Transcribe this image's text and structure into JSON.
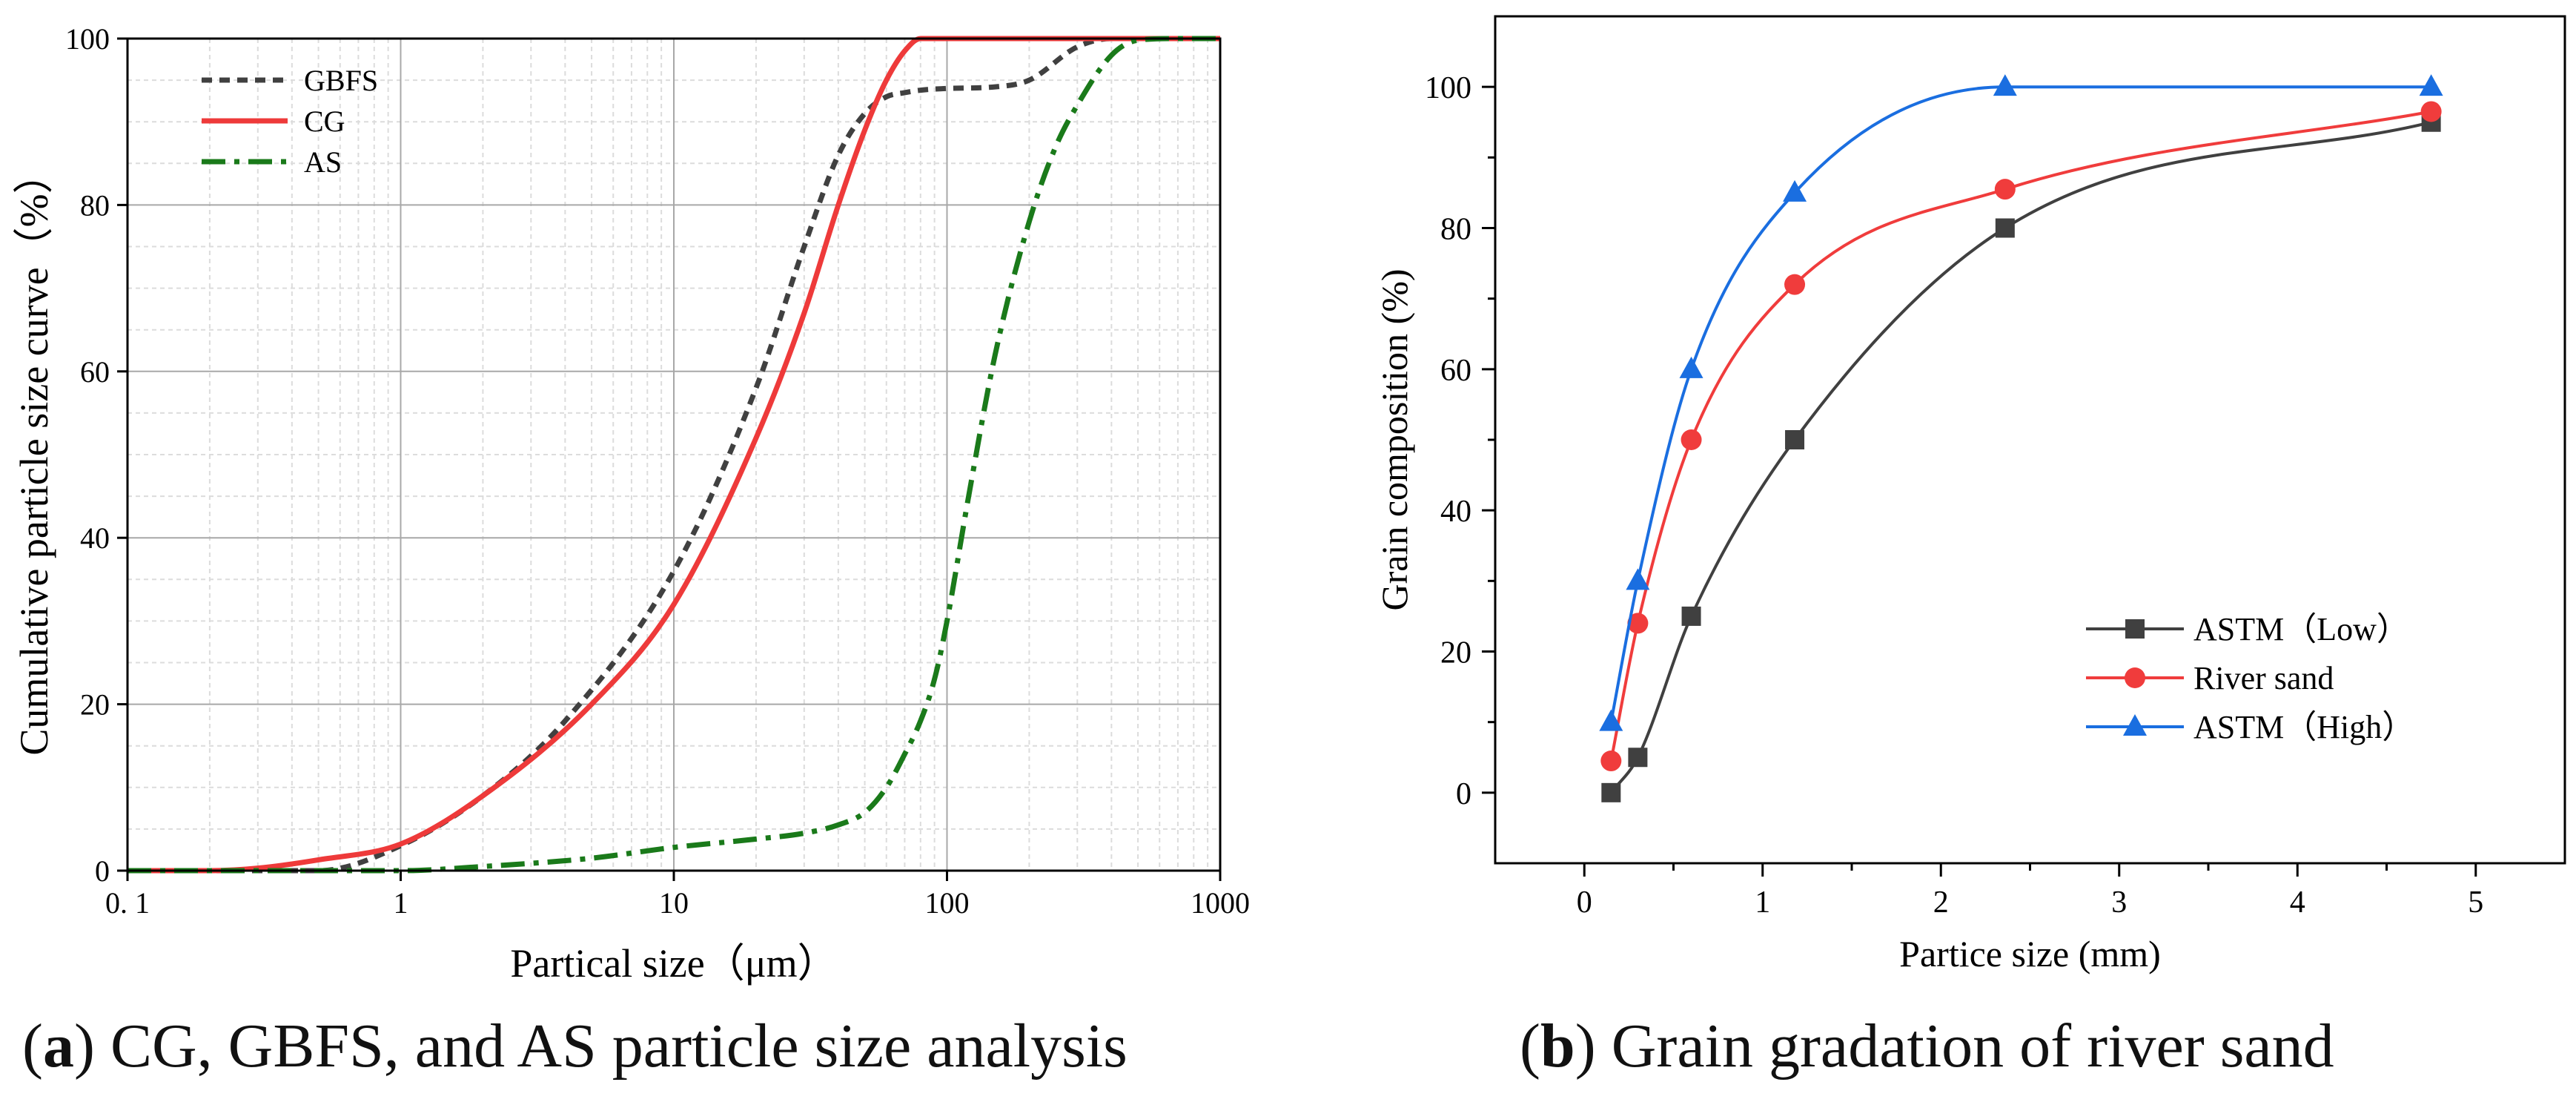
{
  "chart_data": [
    {
      "type": "line",
      "x_scale": "log",
      "xlabel": "Partical size（μm）",
      "ylabel": "Cumulative particle size curve（%）",
      "xlim": [
        0.1,
        1000
      ],
      "ylim": [
        0,
        100
      ],
      "grid": true,
      "legend_position": "top-left",
      "x_ticks": [
        {
          "value": 0.1,
          "label": "0. 1"
        },
        {
          "value": 1,
          "label": "1"
        },
        {
          "value": 10,
          "label": "10"
        },
        {
          "value": 100,
          "label": "100"
        },
        {
          "value": 1000,
          "label": "1000"
        }
      ],
      "y_ticks": [
        {
          "value": 0,
          "label": "0"
        },
        {
          "value": 20,
          "label": "20"
        },
        {
          "value": 40,
          "label": "40"
        },
        {
          "value": 60,
          "label": "60"
        },
        {
          "value": 80,
          "label": "80"
        },
        {
          "value": 100,
          "label": "100"
        }
      ],
      "series": [
        {
          "name": "GBFS",
          "color": "#404040",
          "dash": "dot",
          "x": [
            0.1,
            0.3,
            0.5,
            1,
            2,
            4,
            10,
            20,
            30,
            40,
            50,
            60,
            70,
            80,
            100,
            150,
            200,
            300,
            400,
            500,
            1000
          ],
          "y": [
            0,
            0,
            0,
            3,
            9,
            18,
            36,
            58,
            75,
            86,
            91,
            93,
            93.5,
            93.8,
            94,
            94.2,
            95,
            99,
            100,
            100,
            100
          ]
        },
        {
          "name": "CG",
          "color": "#ee3a3a",
          "dash": "solid",
          "x": [
            0.1,
            0.2,
            0.3,
            0.5,
            1,
            2,
            5,
            10,
            20,
            30,
            40,
            50,
            60,
            70,
            80,
            100,
            150,
            1000
          ],
          "y": [
            0,
            0,
            0.3,
            1.3,
            3.2,
            9,
            20,
            32,
            52,
            67,
            80,
            89,
            95,
            98.5,
            100,
            100,
            100,
            100
          ]
        },
        {
          "name": "AS",
          "color": "#1a7a1a",
          "dash": "dashdot",
          "x": [
            0.1,
            0.5,
            1,
            2,
            5,
            10,
            20,
            30,
            40,
            50,
            60,
            70,
            80,
            90,
            100,
            120,
            150,
            200,
            250,
            300,
            400,
            500,
            700,
            1000
          ],
          "y": [
            0,
            0,
            0,
            0.5,
            1.5,
            2.8,
            3.8,
            4.5,
            5.5,
            7,
            10,
            14,
            18,
            23,
            30,
            45,
            62,
            78,
            87,
            92,
            98,
            99.8,
            100,
            100
          ]
        }
      ]
    },
    {
      "type": "line",
      "xlabel": "Partice size (mm)",
      "ylabel": "Grain composition (%)",
      "xlim": [
        -0.5,
        5.5
      ],
      "ylim": [
        -10,
        110
      ],
      "grid": false,
      "legend_position": "bottom-right",
      "x_ticks": [
        {
          "value": 0,
          "label": "0"
        },
        {
          "value": 1,
          "label": "1"
        },
        {
          "value": 2,
          "label": "2"
        },
        {
          "value": 3,
          "label": "3"
        },
        {
          "value": 4,
          "label": "4"
        },
        {
          "value": 5,
          "label": "5"
        }
      ],
      "y_ticks": [
        {
          "value": 0,
          "label": "0"
        },
        {
          "value": 20,
          "label": "20"
        },
        {
          "value": 40,
          "label": "40"
        },
        {
          "value": 60,
          "label": "60"
        },
        {
          "value": 80,
          "label": "80"
        },
        {
          "value": 100,
          "label": "100"
        }
      ],
      "series": [
        {
          "name": "ASTM（Low）",
          "color": "#404040",
          "marker": "square",
          "x": [
            0.15,
            0.3,
            0.6,
            1.18,
            2.36,
            4.75
          ],
          "y": [
            0,
            5,
            25,
            50,
            80,
            95
          ]
        },
        {
          "name": "River sand",
          "color": "#f03c3c",
          "marker": "circle",
          "x": [
            0.15,
            0.3,
            0.6,
            1.18,
            2.36,
            4.75
          ],
          "y": [
            4.5,
            24,
            50,
            72,
            85.5,
            96.5
          ]
        },
        {
          "name": "ASTM（High）",
          "color": "#1a6ee0",
          "marker": "triangle",
          "x": [
            0.15,
            0.3,
            0.6,
            1.18,
            2.36,
            4.75
          ],
          "y": [
            10,
            30,
            60,
            85,
            100,
            100
          ]
        }
      ]
    }
  ],
  "captions": {
    "a": {
      "letter": "a",
      "text": "CG, GBFS, and AS particle size analysis"
    },
    "b": {
      "letter": "b",
      "text": "Grain gradation of river sand"
    }
  }
}
